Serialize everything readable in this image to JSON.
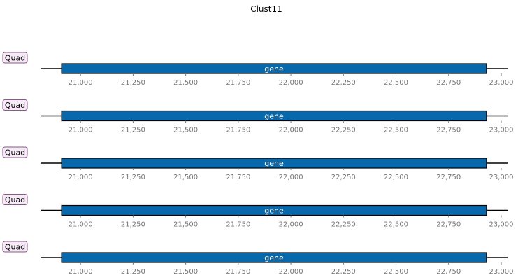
{
  "title": "Clust11",
  "colors": {
    "gene_fill": "#0868ac",
    "gene_border": "#000000",
    "gene_text": "#ffffff",
    "track_line": "#000000",
    "label_fill": "#f7eaf7",
    "label_border": "#8a5a8a",
    "tick_text": "#777777",
    "title_text": "#000000"
  },
  "axis": {
    "range": [
      20810,
      23030
    ],
    "ticks": [
      21000,
      21250,
      21500,
      21750,
      22000,
      22250,
      22500,
      22750,
      23000
    ],
    "tick_labels": [
      "21,000",
      "21,250",
      "21,500",
      "21,750",
      "22,000",
      "22,250",
      "22,500",
      "22,750",
      "23,000"
    ]
  },
  "tracks": [
    {
      "label": "Quad",
      "features": [
        {
          "name": "gene",
          "start": 20910,
          "end": 22930
        }
      ]
    },
    {
      "label": "Quad",
      "features": [
        {
          "name": "gene",
          "start": 20910,
          "end": 22930
        }
      ]
    },
    {
      "label": "Quad",
      "features": [
        {
          "name": "gene",
          "start": 20910,
          "end": 22930
        }
      ]
    },
    {
      "label": "Quad",
      "features": [
        {
          "name": "gene",
          "start": 20910,
          "end": 22930
        }
      ]
    },
    {
      "label": "Quad",
      "features": [
        {
          "name": "gene",
          "start": 20910,
          "end": 22930
        }
      ]
    }
  ]
}
